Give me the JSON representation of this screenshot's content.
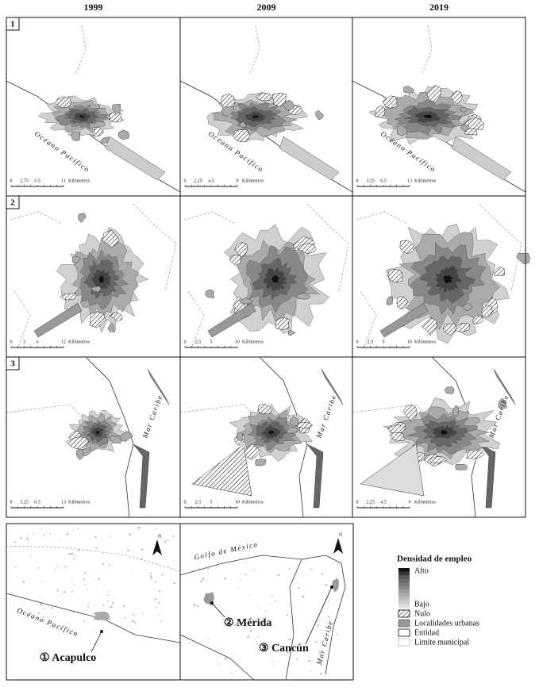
{
  "columns": [
    "1999",
    "2009",
    "2019"
  ],
  "rows": [
    {
      "number": "1",
      "sea": "Océano Pacífico",
      "scales": [
        [
          "0",
          "2.75",
          "5.5",
          "11"
        ],
        [
          "0",
          "2.25",
          "4.5",
          "9"
        ],
        [
          "0",
          "3.25",
          "6.5",
          "13"
        ]
      ]
    },
    {
      "number": "2",
      "scales": [
        [
          "0",
          "3",
          "6",
          "12"
        ],
        [
          "0",
          "2.5",
          "5",
          "10"
        ],
        [
          "0",
          "2.5",
          "5",
          "10"
        ]
      ]
    },
    {
      "number": "3",
      "sea": "Mar Caribe",
      "scales": [
        [
          "0",
          "3.25",
          "6.5",
          "13"
        ],
        [
          "0",
          "2.5",
          "5",
          "10"
        ],
        [
          "0",
          "2.25",
          "4.5",
          "9"
        ]
      ]
    }
  ],
  "scale_unit": "Kilómetros",
  "overview": {
    "north": "N",
    "pacific": "Océano Pacífico",
    "gulf": "Golfo de México",
    "caribbean": "Mar Caribe",
    "cities": [
      "① Acapulco",
      "② Mérida",
      "③ Cancún"
    ]
  },
  "legend": {
    "title": "Densidad de empleo",
    "high": "Alto",
    "low": "Bajo",
    "items": [
      "Nulo",
      "Localidades urbanas",
      "Entidad",
      "Límite municipal"
    ]
  }
}
